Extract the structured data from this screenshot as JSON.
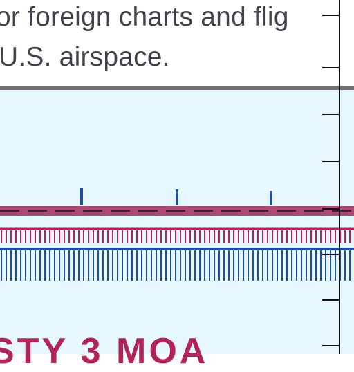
{
  "note": {
    "line1": "or foreign charts and flig",
    "line2": "U.S. airspace."
  },
  "map": {
    "airspace_label": "STY 3 MOA",
    "colors": {
      "panel_bg": "#ffffff",
      "water_tint": "#e6f8fd",
      "divider": "#6f6f75",
      "note_text": "#404349",
      "moa_boundary": "#b0245a",
      "moa_band": "#a94a72",
      "blue_boundary": "#1f4f9a",
      "border_tick": "#111111"
    },
    "symbols": [
      "moa-hatched-boundary",
      "blue-hatched-boundary",
      "dashed-line",
      "vertical-tick-border"
    ]
  }
}
